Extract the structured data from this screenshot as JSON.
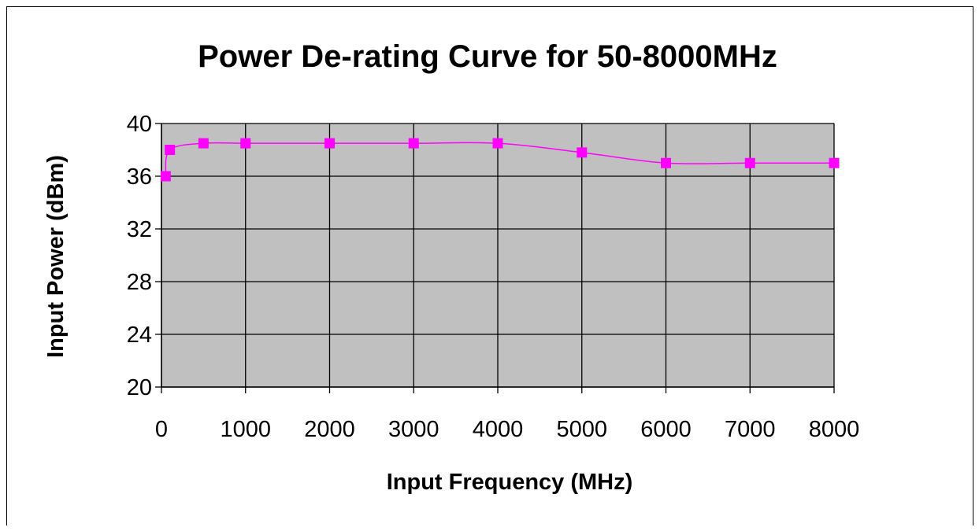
{
  "chart_data": {
    "type": "line",
    "title": "Power De-rating Curve for 50-8000MHz",
    "xlabel": "Input Frequency (MHz)",
    "ylabel": "Input Power (dBm)",
    "xlim": [
      0,
      8000
    ],
    "ylim": [
      20,
      40
    ],
    "xticks": [
      "0",
      "1000",
      "2000",
      "3000",
      "4000",
      "5000",
      "6000",
      "7000",
      "8000"
    ],
    "yticks": [
      "20",
      "24",
      "28",
      "32",
      "36",
      "40"
    ],
    "grid": true,
    "plot_background": "#C0C0C0",
    "series": [
      {
        "color": "#FF00FF",
        "marker": "square",
        "smooth": true,
        "x": [
          50,
          100,
          500,
          1000,
          2000,
          3000,
          4000,
          5000,
          6000,
          7000,
          8000
        ],
        "y": [
          36,
          38,
          38.5,
          38.5,
          38.5,
          38.5,
          38.5,
          37.8,
          37,
          37,
          37
        ]
      }
    ]
  }
}
